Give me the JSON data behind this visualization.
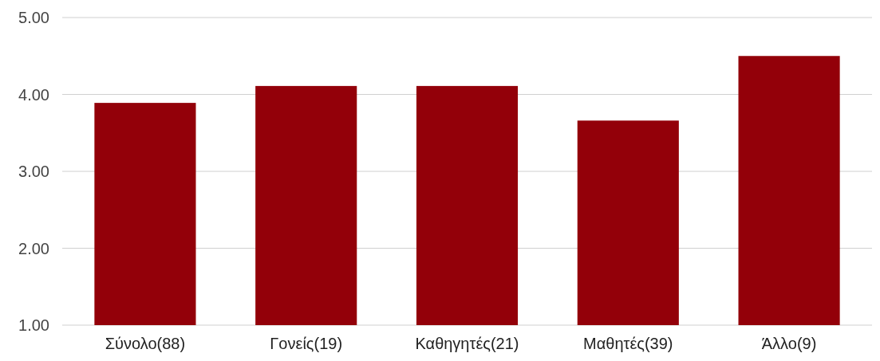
{
  "chart_data": {
    "type": "bar",
    "categories": [
      "Σύνολο(88)",
      "Γονείς(19)",
      "Καθηγητές(21)",
      "Μαθητές(39)",
      "Άλλο(9)"
    ],
    "values": [
      3.89,
      4.11,
      4.11,
      3.66,
      4.5
    ],
    "color": "#930009",
    "ylim": [
      1,
      5
    ],
    "yticks": [
      {
        "value": 1,
        "label": "1.00"
      },
      {
        "value": 2,
        "label": "2.00"
      },
      {
        "value": 3,
        "label": "3.00"
      },
      {
        "value": 4,
        "label": "4.00"
      },
      {
        "value": 5,
        "label": "5.00"
      }
    ],
    "grid": "y"
  }
}
